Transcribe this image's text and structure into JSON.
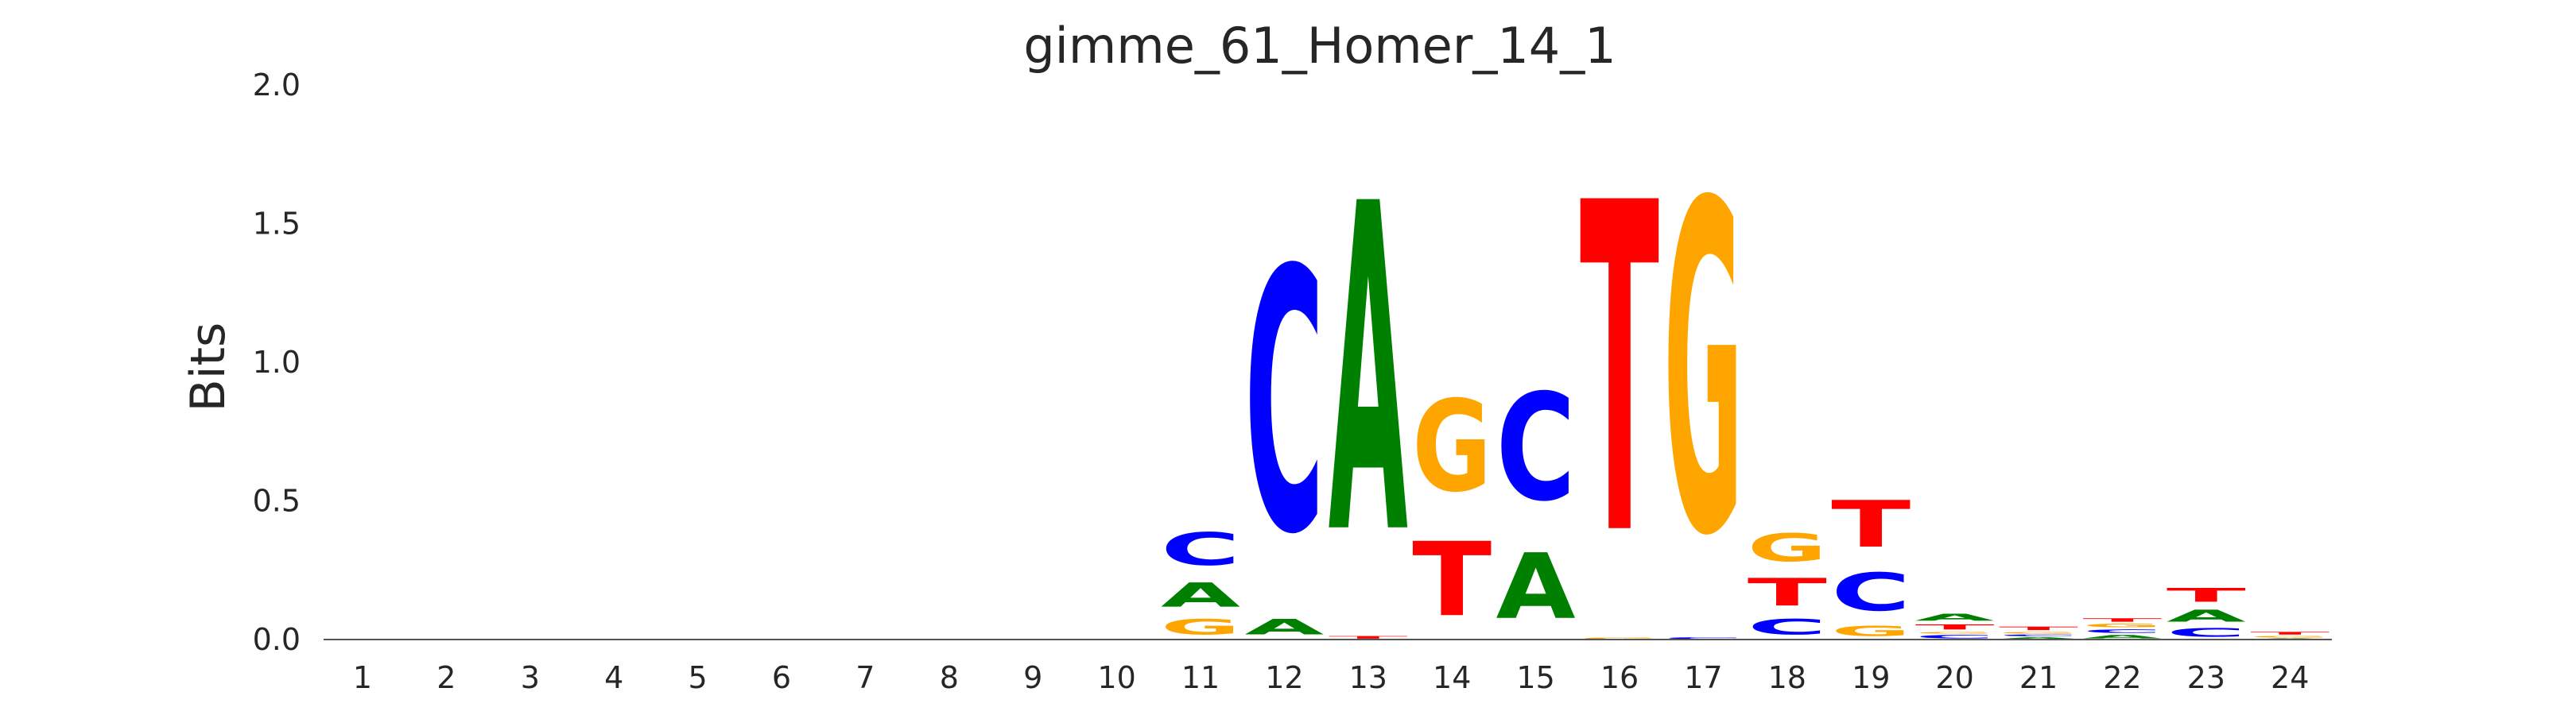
{
  "chart_data": {
    "type": "sequence-logo",
    "title": "gimme_61_Homer_14_1",
    "ylabel": "Bits",
    "xlabel": "",
    "ylim": [
      0,
      2
    ],
    "yticks": [
      "0.0",
      "0.5",
      "1.0",
      "1.5",
      "2.0"
    ],
    "ytick_values": [
      0,
      0.5,
      1.0,
      1.5,
      2.0
    ],
    "positions": [
      "1",
      "2",
      "3",
      "4",
      "5",
      "6",
      "7",
      "8",
      "9",
      "10",
      "11",
      "12",
      "13",
      "14",
      "15",
      "16",
      "17",
      "18",
      "19",
      "20",
      "21",
      "22",
      "23",
      "24"
    ],
    "colors": {
      "A": "#008000",
      "C": "#0000ff",
      "G": "#ffa500",
      "T": "#ff0000"
    },
    "columns": [
      [],
      [],
      [],
      [],
      [],
      [],
      [],
      [],
      [],
      [],
      [
        {
          "base": "G",
          "bits": 0.09
        },
        {
          "base": "A",
          "bits": 0.14
        },
        {
          "base": "C",
          "bits": 0.19
        }
      ],
      [
        {
          "base": "A",
          "bits": 0.09
        },
        {
          "base": "C",
          "bits": 1.52
        }
      ],
      [
        {
          "base": "T",
          "bits": 0.015
        },
        {
          "base": "A",
          "bits": 1.9
        }
      ],
      [
        {
          "base": "T",
          "bits": 0.43
        },
        {
          "base": "G",
          "bits": 0.53
        }
      ],
      [
        {
          "base": "A",
          "bits": 0.38
        },
        {
          "base": "C",
          "bits": 0.62
        }
      ],
      [
        {
          "base": "G",
          "bits": 0.01
        },
        {
          "base": "T",
          "bits": 1.91
        }
      ],
      [
        {
          "base": "C",
          "bits": 0.01
        },
        {
          "base": "G",
          "bits": 1.91
        }
      ],
      [
        {
          "base": "C",
          "bits": 0.09
        },
        {
          "base": "T",
          "bits": 0.16
        },
        {
          "base": "G",
          "bits": 0.16
        }
      ],
      [
        {
          "base": "G",
          "bits": 0.06
        },
        {
          "base": "C",
          "bits": 0.22
        },
        {
          "base": "T",
          "bits": 0.27
        }
      ],
      [
        {
          "base": "C",
          "bits": 0.02
        },
        {
          "base": "G",
          "bits": 0.01
        },
        {
          "base": "T",
          "bits": 0.03
        },
        {
          "base": "A",
          "bits": 0.04
        }
      ],
      [
        {
          "base": "A",
          "bits": 0.01
        },
        {
          "base": "C",
          "bits": 0.01
        },
        {
          "base": "G",
          "bits": 0.01
        },
        {
          "base": "T",
          "bits": 0.02
        }
      ],
      [
        {
          "base": "A",
          "bits": 0.02
        },
        {
          "base": "C",
          "bits": 0.02
        },
        {
          "base": "G",
          "bits": 0.02
        },
        {
          "base": "T",
          "bits": 0.02
        }
      ],
      [
        {
          "base": "C",
          "bits": 0.05
        },
        {
          "base": "A",
          "bits": 0.07
        },
        {
          "base": "T",
          "bits": 0.08
        }
      ],
      [
        {
          "base": "A",
          "bits": 0.005
        },
        {
          "base": "G",
          "bits": 0.01
        },
        {
          "base": "T",
          "bits": 0.015
        }
      ]
    ]
  }
}
